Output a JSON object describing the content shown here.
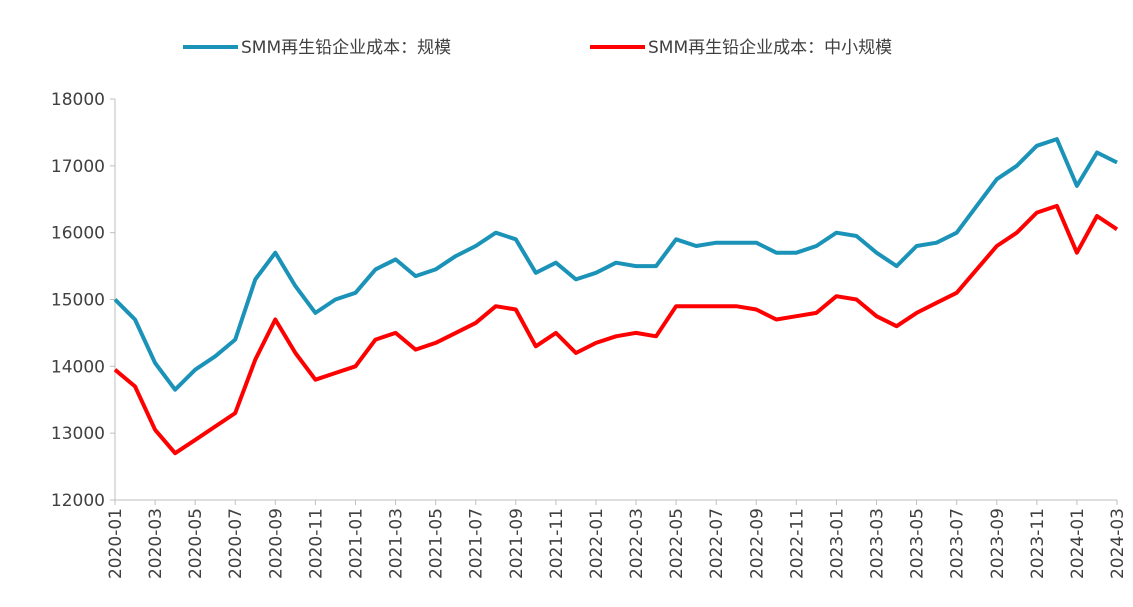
{
  "chart_data": {
    "type": "line",
    "categories": [
      "2020-01",
      null,
      "2020-03",
      null,
      "2020-05",
      null,
      "2020-07",
      null,
      "2020-09",
      null,
      "2020-11",
      null,
      "2021-01",
      null,
      "2021-03",
      null,
      "2021-05",
      null,
      "2021-07",
      null,
      "2021-09",
      null,
      "2021-11",
      null,
      "2022-01",
      null,
      "2022-03",
      null,
      "2022-05",
      null,
      "2022-07",
      null,
      "2022-09",
      null,
      "2022-11",
      null,
      "2023-01",
      null,
      "2023-03",
      null,
      "2023-05",
      null,
      "2023-07",
      null,
      "2023-09",
      null,
      "2023-11",
      null,
      "2024-01",
      null,
      "2024-03"
    ],
    "series": [
      {
        "name": "SMM再生铅企业成本：规模",
        "color": "#1b93b8",
        "values": [
          15000,
          14700,
          14050,
          13650,
          13950,
          14150,
          14400,
          15300,
          15700,
          15200,
          14800,
          15000,
          15100,
          15450,
          15600,
          15350,
          15450,
          15650,
          15800,
          16000,
          15900,
          15400,
          15550,
          15300,
          15400,
          15550,
          15500,
          15500,
          15900,
          15800,
          15850,
          15850,
          15850,
          15700,
          15700,
          15800,
          16000,
          15950,
          15700,
          15500,
          15800,
          15850,
          16000,
          16400,
          16800,
          17000,
          17300,
          17400,
          16700,
          17200,
          17050
        ]
      },
      {
        "name": "SMM再生铅企业成本：中小规模",
        "color": "#ff0000",
        "values": [
          13950,
          13700,
          13050,
          12700,
          12900,
          13100,
          13300,
          14100,
          14700,
          14200,
          13800,
          13900,
          14000,
          14400,
          14500,
          14250,
          14350,
          14500,
          14650,
          14900,
          14850,
          14300,
          14500,
          14200,
          14350,
          14450,
          14500,
          14450,
          14900,
          14900,
          14900,
          14900,
          14850,
          14700,
          14750,
          14800,
          15050,
          15000,
          14750,
          14600,
          14800,
          14950,
          15100,
          15450,
          15800,
          16000,
          16300,
          16400,
          15700,
          16250,
          16050
        ]
      }
    ],
    "ylim": [
      12000,
      18000
    ],
    "yticks": [
      12000,
      13000,
      14000,
      15000,
      16000,
      17000,
      18000
    ],
    "legend": "top"
  }
}
